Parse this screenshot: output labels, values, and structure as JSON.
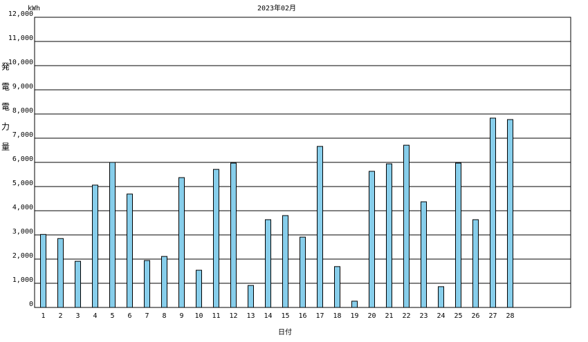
{
  "chart_data": {
    "type": "bar",
    "title": "2023年02月",
    "unit_label": "kWh",
    "y_label": "発電電力量",
    "x_label": "日付",
    "categories": [
      "1",
      "2",
      "3",
      "4",
      "5",
      "6",
      "7",
      "8",
      "9",
      "10",
      "11",
      "12",
      "13",
      "14",
      "15",
      "16",
      "17",
      "18",
      "19",
      "20",
      "21",
      "22",
      "23",
      "24",
      "25",
      "26",
      "27",
      "28"
    ],
    "values": [
      3020,
      2850,
      1910,
      5060,
      6000,
      4690,
      1940,
      2110,
      5370,
      1540,
      5710,
      5970,
      910,
      3630,
      3800,
      2910,
      6660,
      1690,
      260,
      5630,
      5940,
      6710,
      4370,
      860,
      5970,
      3630,
      7830,
      7770
    ],
    "color": "#87ceeb",
    "ylim": [
      0,
      12000
    ],
    "yticks": [
      0,
      {
        "value": 1000,
        "label": "1,000"
      },
      {
        "value": 2000,
        "label": "2,000"
      },
      {
        "value": 3000,
        "label": "3,000"
      },
      {
        "value": 4000,
        "label": "4,000"
      },
      {
        "value": 5000,
        "label": "5,000"
      },
      {
        "value": 6000,
        "label": "6,000"
      },
      {
        "value": 7000,
        "label": "7,000"
      },
      {
        "value": 8000,
        "label": "8,000"
      },
      {
        "value": 9000,
        "label": "9,000"
      },
      {
        "value": 10000,
        "label": "10,000"
      },
      {
        "value": 11000,
        "label": "11,000"
      },
      {
        "value": 12000,
        "label": "12,000"
      }
    ],
    "grid": true
  }
}
